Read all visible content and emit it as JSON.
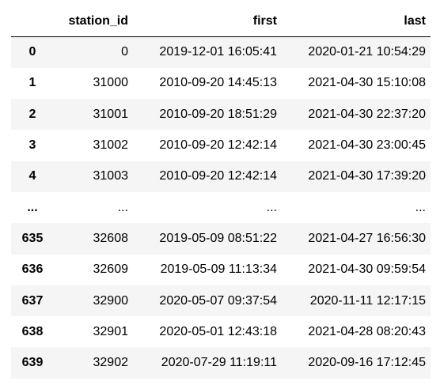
{
  "table": {
    "columns": [
      "",
      "station_id",
      "first",
      "last"
    ],
    "rows": [
      {
        "index": "0",
        "station_id": "0",
        "first": "2019-12-01 16:05:41",
        "last": "2020-01-21 10:54:29"
      },
      {
        "index": "1",
        "station_id": "31000",
        "first": "2010-09-20 14:45:13",
        "last": "2021-04-30 15:10:08"
      },
      {
        "index": "2",
        "station_id": "31001",
        "first": "2010-09-20 18:51:29",
        "last": "2021-04-30 22:37:20"
      },
      {
        "index": "3",
        "station_id": "31002",
        "first": "2010-09-20 12:42:14",
        "last": "2021-04-30 23:00:45"
      },
      {
        "index": "4",
        "station_id": "31003",
        "first": "2010-09-20 12:42:14",
        "last": "2021-04-30 17:39:20"
      },
      {
        "index": "...",
        "station_id": "...",
        "first": "...",
        "last": "..."
      },
      {
        "index": "635",
        "station_id": "32608",
        "first": "2019-05-09 08:51:22",
        "last": "2021-04-27 16:56:30"
      },
      {
        "index": "636",
        "station_id": "32609",
        "first": "2019-05-09 11:13:34",
        "last": "2021-04-30 09:59:54"
      },
      {
        "index": "637",
        "station_id": "32900",
        "first": "2020-05-07 09:37:54",
        "last": "2020-11-11 12:17:15"
      },
      {
        "index": "638",
        "station_id": "32901",
        "first": "2020-05-01 12:43:18",
        "last": "2021-04-28 08:20:43"
      },
      {
        "index": "639",
        "station_id": "32902",
        "first": "2020-07-29 11:19:11",
        "last": "2020-09-16 17:12:45"
      }
    ]
  }
}
